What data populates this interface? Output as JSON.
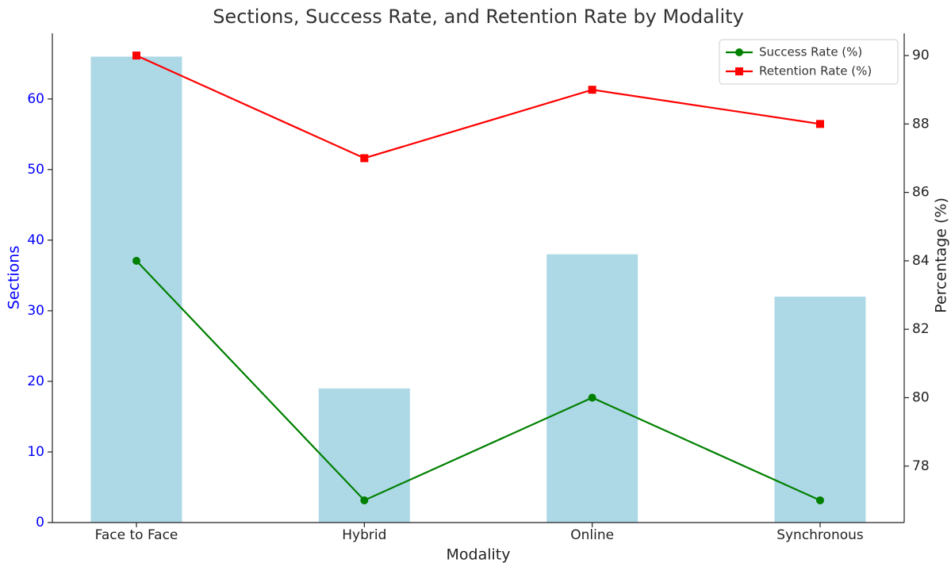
{
  "chart_data": {
    "type": "bar",
    "title": "Sections, Success Rate, and Retention Rate by Modality",
    "x_label": "Modality",
    "y_label": "Sections",
    "y2_label": "Percentage (%)",
    "categories": [
      "Face to Face",
      "Hybrid",
      "Online",
      "Synchronous"
    ],
    "values": [
      66,
      19,
      38,
      32
    ],
    "color": "#add8e6",
    "y_axis_color": "#0000ff",
    "series": [
      {
        "name": "Success Rate (%)",
        "color": "#008000",
        "marker": "circle",
        "axis": "y2",
        "values": [
          84,
          77,
          80,
          77
        ]
      },
      {
        "name": "Retention Rate (%)",
        "color": "#ff0000",
        "marker": "square",
        "axis": "y2",
        "values": [
          90,
          87,
          89,
          88
        ]
      }
    ],
    "ylim": [
      0,
      69.3
    ],
    "yticks": [
      0,
      10,
      20,
      30,
      40,
      50,
      60
    ],
    "y2lim": [
      76.35,
      90.65
    ],
    "y2ticks": [
      78,
      80,
      82,
      84,
      86,
      88,
      90
    ],
    "grid": false,
    "legend": "upper right"
  }
}
